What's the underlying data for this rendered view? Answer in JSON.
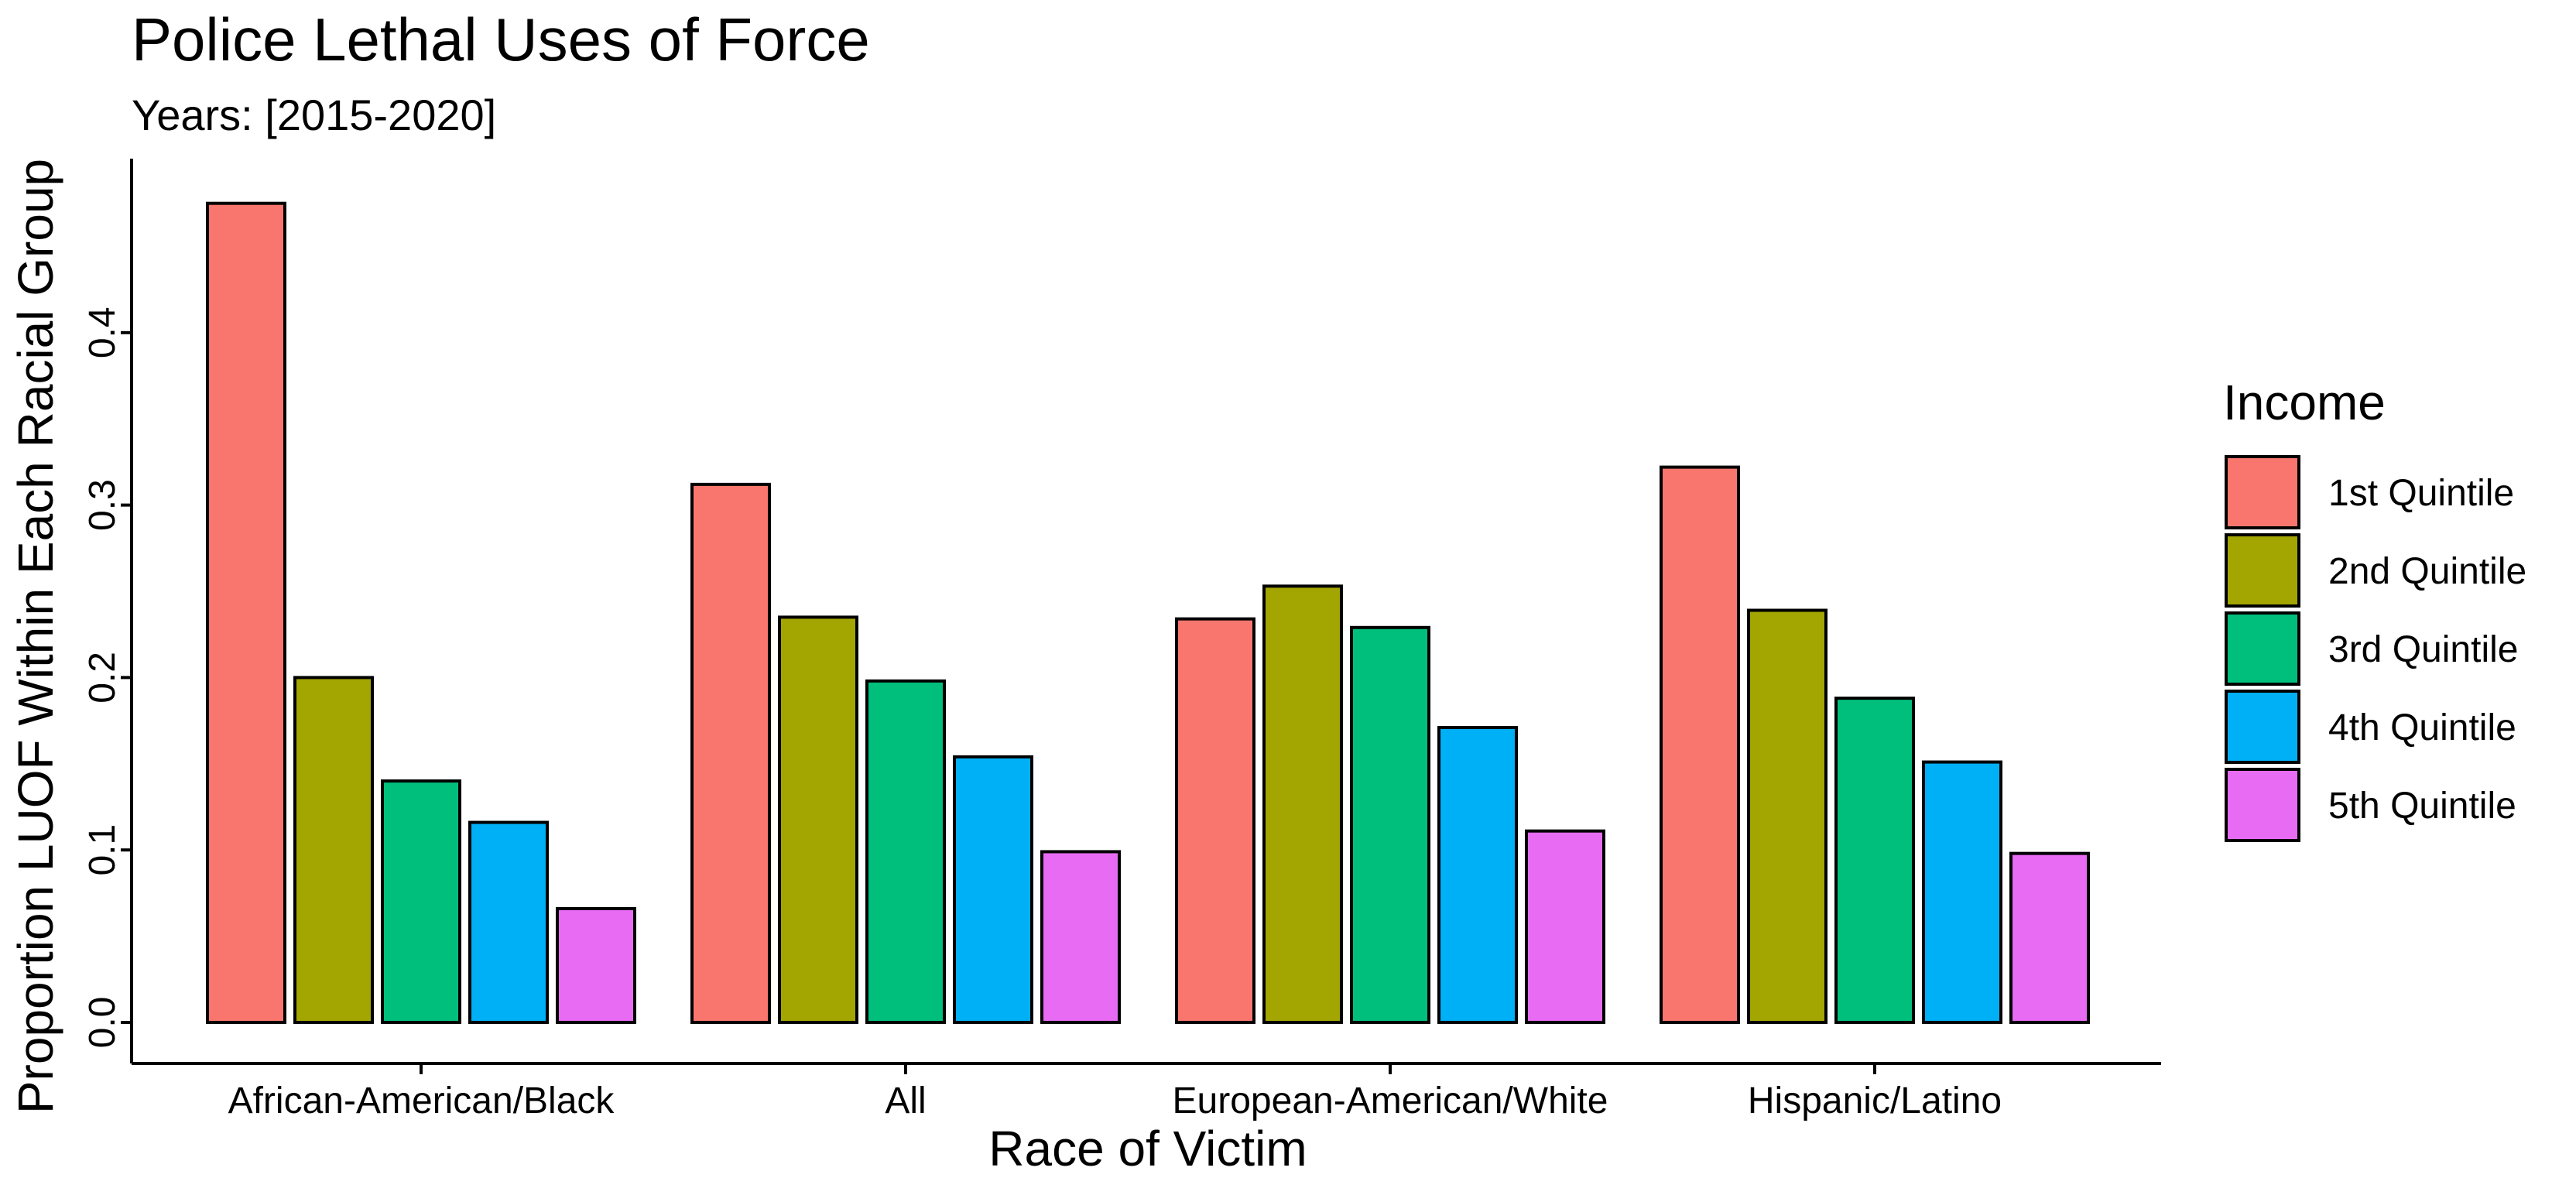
{
  "chart_data": {
    "type": "bar",
    "title": "Police Lethal Uses of Force",
    "subtitle": "Years: [2015-2020]",
    "xlabel": "Race of Victim",
    "ylabel": "Proportion LUOF Within Each Racial Group",
    "categories": [
      "African-American/Black",
      "All",
      "European-American/White",
      "Hispanic/Latino"
    ],
    "y_ticks": [
      "0.0",
      "0.1",
      "0.2",
      "0.3",
      "0.4"
    ],
    "ylim": [
      0,
      0.49
    ],
    "grid": false,
    "legend": {
      "title": "Income",
      "placement": "right"
    },
    "series": [
      {
        "name": "1st Quintile",
        "color": "#F8766D",
        "values": [
          0.475,
          0.312,
          0.234,
          0.322
        ]
      },
      {
        "name": "2nd Quintile",
        "color": "#A3A500",
        "values": [
          0.2,
          0.235,
          0.253,
          0.239
        ]
      },
      {
        "name": "3rd Quintile",
        "color": "#00BF7D",
        "values": [
          0.14,
          0.198,
          0.229,
          0.188
        ]
      },
      {
        "name": "4th Quintile",
        "color": "#00B0F6",
        "values": [
          0.116,
          0.154,
          0.171,
          0.151
        ]
      },
      {
        "name": "5th Quintile",
        "color": "#E76BF3",
        "values": [
          0.066,
          0.099,
          0.111,
          0.098
        ]
      }
    ]
  }
}
